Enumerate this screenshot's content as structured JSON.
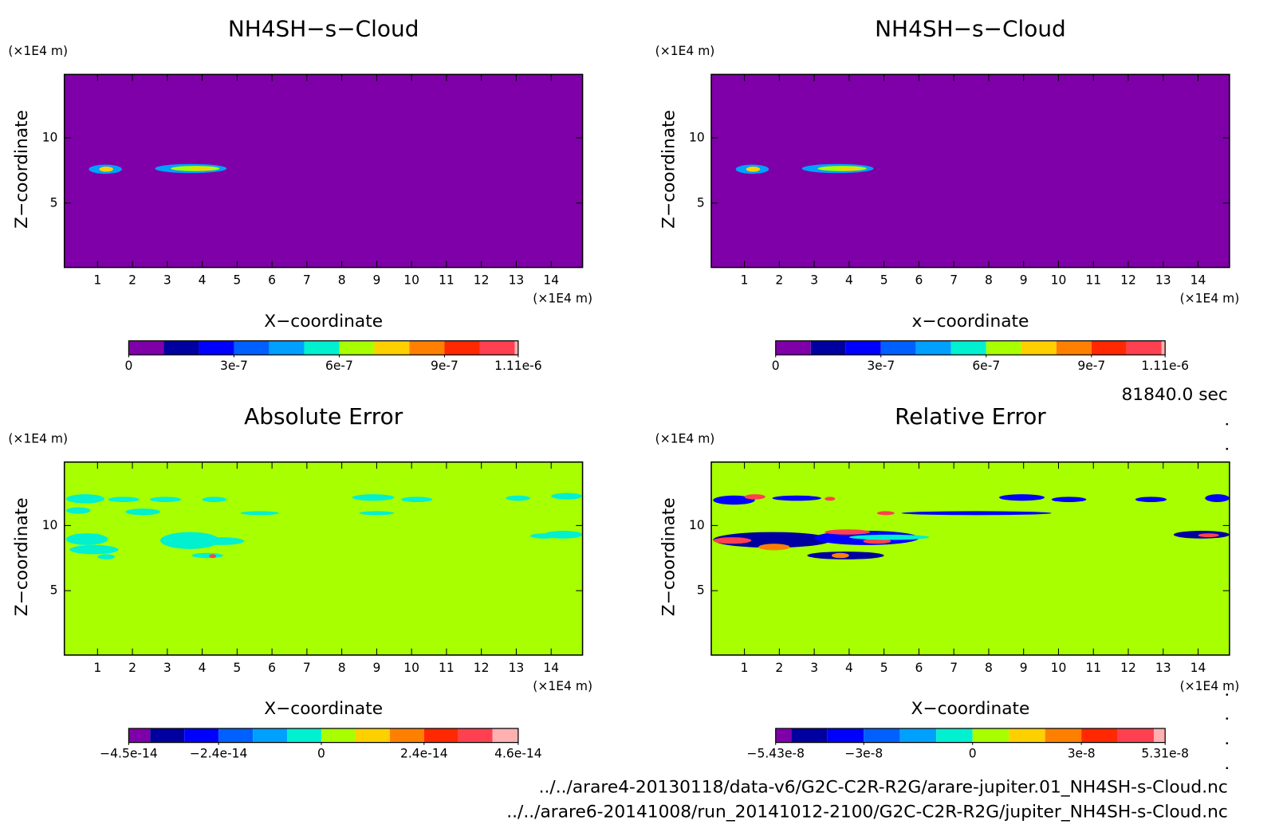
{
  "chart_data": [
    {
      "type": "contour",
      "title": "NH4SH−s−Cloud",
      "x_label": "X−coordinate",
      "y_label": "Z−coordinate",
      "x_unit": "(×1E4 m)",
      "y_unit": "(×1E4 m)",
      "xlim": [
        0.05,
        14.9
      ],
      "ylim": [
        0.06,
        14.87
      ],
      "xticks": [
        1,
        2,
        3,
        4,
        5,
        6,
        7,
        8,
        9,
        10,
        11,
        12,
        13,
        14
      ],
      "yticks": [
        5,
        10
      ],
      "background": 0,
      "patches": [
        {
          "x": [
            0.75,
            1.7
          ],
          "z": [
            7.25,
            7.95
          ],
          "value": 4e-07
        },
        {
          "x": [
            1.05,
            1.45
          ],
          "z": [
            7.4,
            7.8
          ],
          "value": 7e-07
        },
        {
          "x": [
            2.65,
            4.7
          ],
          "z": [
            7.3,
            8.0
          ],
          "value": 4e-07
        },
        {
          "x": [
            3.1,
            4.5
          ],
          "z": [
            7.45,
            7.85
          ],
          "value": 6.5e-07
        },
        {
          "x": [
            3.7,
            4.3
          ],
          "z": [
            7.5,
            7.75
          ],
          "value": 7e-07
        }
      ],
      "colorbar": {
        "levels": [
          0,
          1e-07,
          2e-07,
          3e-07,
          4e-07,
          5e-07,
          6e-07,
          7e-07,
          8e-07,
          9e-07,
          1e-06,
          1.1e-06,
          1.11e-06
        ],
        "colors": [
          "#7f00a8",
          "#0000a0",
          "#0000ff",
          "#0060ff",
          "#00a0ff",
          "#00f0d0",
          "#a8ff00",
          "#ffd000",
          "#ff8000",
          "#ff2800",
          "#ff4050",
          "#ffb0b0"
        ],
        "ticks": [
          0,
          {
            "value": 3e-07,
            "label": "3e-7"
          },
          {
            "value": 6e-07,
            "label": "6e-7"
          },
          {
            "value": 9e-07,
            "label": "9e-7"
          },
          {
            "value": 1.11e-06,
            "label": "1.11e-6"
          }
        ]
      }
    },
    {
      "type": "contour",
      "title": "NH4SH−s−Cloud",
      "x_label": "x−coordinate",
      "y_label": "Z−coordinate",
      "x_unit": "(×1E4 m)",
      "y_unit": "(×1E4 m)",
      "xlim": [
        0.05,
        14.9
      ],
      "ylim": [
        0.06,
        14.87
      ],
      "xticks": [
        1,
        2,
        3,
        4,
        5,
        6,
        7,
        8,
        9,
        10,
        11,
        12,
        13,
        14
      ],
      "yticks": [
        5,
        10
      ],
      "background": 0,
      "patches": [
        {
          "x": [
            0.75,
            1.7
          ],
          "z": [
            7.25,
            7.95
          ],
          "value": 4e-07
        },
        {
          "x": [
            1.05,
            1.45
          ],
          "z": [
            7.4,
            7.8
          ],
          "value": 7e-07
        },
        {
          "x": [
            2.65,
            4.7
          ],
          "z": [
            7.3,
            8.0
          ],
          "value": 4e-07
        },
        {
          "x": [
            3.1,
            4.5
          ],
          "z": [
            7.45,
            7.85
          ],
          "value": 6.5e-07
        },
        {
          "x": [
            3.7,
            4.3
          ],
          "z": [
            7.5,
            7.75
          ],
          "value": 7e-07
        }
      ],
      "colorbar": {
        "levels": [
          0,
          1e-07,
          2e-07,
          3e-07,
          4e-07,
          5e-07,
          6e-07,
          7e-07,
          8e-07,
          9e-07,
          1e-06,
          1.1e-06,
          1.11e-06
        ],
        "colors": [
          "#7f00a8",
          "#0000a0",
          "#0000ff",
          "#0060ff",
          "#00a0ff",
          "#00f0d0",
          "#a8ff00",
          "#ffd000",
          "#ff8000",
          "#ff2800",
          "#ff4050",
          "#ffb0b0"
        ],
        "ticks": [
          0,
          {
            "value": 3e-07,
            "label": "3e-7"
          },
          {
            "value": 6e-07,
            "label": "6e-7"
          },
          {
            "value": 9e-07,
            "label": "9e-7"
          },
          {
            "value": 1.11e-06,
            "label": "1.11e-6"
          }
        ]
      }
    },
    {
      "type": "contour",
      "title": "Absolute Error",
      "x_label": "X−coordinate",
      "y_label": "Z−coordinate",
      "x_unit": "(×1E4 m)",
      "y_unit": "(×1E4 m)",
      "xlim": [
        0.05,
        14.9
      ],
      "ylim": [
        0.06,
        14.87
      ],
      "xticks": [
        1,
        2,
        3,
        4,
        5,
        6,
        7,
        8,
        9,
        10,
        11,
        12,
        13,
        14
      ],
      "yticks": [
        5,
        10
      ],
      "background": 0,
      "patches": [
        {
          "x": [
            0.1,
            1.2
          ],
          "z": [
            11.7,
            12.4
          ],
          "value": -4e-15
        },
        {
          "x": [
            1.3,
            2.2
          ],
          "z": [
            11.8,
            12.2
          ],
          "value": -4e-15
        },
        {
          "x": [
            2.5,
            3.4
          ],
          "z": [
            11.8,
            12.2
          ],
          "value": -4e-15
        },
        {
          "x": [
            4.0,
            4.7
          ],
          "z": [
            11.8,
            12.2
          ],
          "value": -4e-15
        },
        {
          "x": [
            8.3,
            9.5
          ],
          "z": [
            11.9,
            12.4
          ],
          "value": -4e-15
        },
        {
          "x": [
            9.7,
            10.6
          ],
          "z": [
            11.8,
            12.2
          ],
          "value": -4e-15
        },
        {
          "x": [
            12.7,
            13.4
          ],
          "z": [
            11.9,
            12.3
          ],
          "value": -4e-15
        },
        {
          "x": [
            0.1,
            0.8
          ],
          "z": [
            10.9,
            11.4
          ],
          "value": -4e-15
        },
        {
          "x": [
            1.8,
            2.8
          ],
          "z": [
            10.8,
            11.3
          ],
          "value": -4e-15
        },
        {
          "x": [
            5.1,
            6.2
          ],
          "z": [
            10.8,
            11.1
          ],
          "value": -4e-15
        },
        {
          "x": [
            8.5,
            9.5
          ],
          "z": [
            10.8,
            11.1
          ],
          "value": -4e-15
        },
        {
          "x": [
            0.1,
            1.3
          ],
          "z": [
            8.5,
            9.4
          ],
          "value": -4e-15
        },
        {
          "x": [
            0.2,
            1.6
          ],
          "z": [
            7.8,
            8.5
          ],
          "value": -4e-15
        },
        {
          "x": [
            2.8,
            4.5
          ],
          "z": [
            8.2,
            9.5
          ],
          "value": -4e-15
        },
        {
          "x": [
            3.9,
            5.2
          ],
          "z": [
            8.5,
            9.1
          ],
          "value": -4e-15
        },
        {
          "x": [
            1.0,
            1.5
          ],
          "z": [
            7.4,
            7.8
          ],
          "value": -4e-15
        },
        {
          "x": [
            3.7,
            4.6
          ],
          "z": [
            7.5,
            7.9
          ],
          "value": -4e-15
        },
        {
          "x": [
            4.2,
            4.4
          ],
          "z": [
            7.5,
            7.8
          ],
          "value": 3.5e-14
        },
        {
          "x": [
            13.4,
            14.2
          ],
          "z": [
            9.0,
            9.4
          ],
          "value": -4e-15
        },
        {
          "x": [
            13.8,
            14.9
          ],
          "z": [
            9.0,
            9.6
          ],
          "value": -4e-15
        },
        {
          "x": [
            14.0,
            14.9
          ],
          "z": [
            12.0,
            12.5
          ],
          "value": -4e-15
        }
      ],
      "colorbar": {
        "levels": [
          -4.5e-14,
          -4e-14,
          -3.2e-14,
          -2.4e-14,
          -1.6e-14,
          -8e-15,
          0,
          8e-15,
          1.6e-14,
          2.4e-14,
          3.2e-14,
          4e-14,
          4.6e-14
        ],
        "colors": [
          "#7f00a8",
          "#0000a0",
          "#0000ff",
          "#0060ff",
          "#00a0ff",
          "#00f0d0",
          "#a8ff00",
          "#ffd000",
          "#ff8000",
          "#ff2800",
          "#ff4050",
          "#ffb0b0"
        ],
        "ticks": [
          {
            "value": -4.5e-14,
            "label": "−4.5e-14"
          },
          {
            "value": -2.4e-14,
            "label": "−2.4e-14"
          },
          0,
          {
            "value": 2.4e-14,
            "label": "2.4e-14"
          },
          {
            "value": 4.6e-14,
            "label": "4.6e-14"
          }
        ]
      }
    },
    {
      "type": "contour",
      "title": "Relative Error",
      "x_label": "X−coordinate",
      "y_label": "Z−coordinate",
      "x_unit": "(×1E4 m)",
      "y_unit": "(×1E4 m)",
      "xlim": [
        0.05,
        14.9
      ],
      "ylim": [
        0.06,
        14.87
      ],
      "xticks": [
        1,
        2,
        3,
        4,
        5,
        6,
        7,
        8,
        9,
        10,
        11,
        12,
        13,
        14
      ],
      "yticks": [
        5,
        10
      ],
      "background": 0,
      "patches": [
        {
          "x": [
            0.1,
            1.3
          ],
          "z": [
            11.6,
            12.3
          ],
          "value": -3.5e-08
        },
        {
          "x": [
            1.0,
            1.6
          ],
          "z": [
            12.0,
            12.4
          ],
          "value": 4.5e-08
        },
        {
          "x": [
            1.8,
            3.2
          ],
          "z": [
            11.9,
            12.3
          ],
          "value": -3.5e-08
        },
        {
          "x": [
            3.3,
            3.6
          ],
          "z": [
            11.9,
            12.2
          ],
          "value": 4.5e-08
        },
        {
          "x": [
            8.3,
            9.6
          ],
          "z": [
            11.9,
            12.4
          ],
          "value": -3.5e-08
        },
        {
          "x": [
            9.8,
            10.8
          ],
          "z": [
            11.8,
            12.2
          ],
          "value": -3.5e-08
        },
        {
          "x": [
            12.2,
            13.1
          ],
          "z": [
            11.8,
            12.2
          ],
          "value": -3.5e-08
        },
        {
          "x": [
            5.5,
            9.8
          ],
          "z": [
            10.8,
            11.1
          ],
          "value": -3.5e-08
        },
        {
          "x": [
            4.8,
            5.3
          ],
          "z": [
            10.8,
            11.1
          ],
          "value": 4.5e-08
        },
        {
          "x": [
            0.1,
            3.5
          ],
          "z": [
            8.3,
            9.5
          ],
          "value": -4.5e-08
        },
        {
          "x": [
            0.1,
            1.2
          ],
          "z": [
            8.6,
            9.1
          ],
          "value": 4.5e-08
        },
        {
          "x": [
            1.4,
            2.3
          ],
          "z": [
            8.1,
            8.6
          ],
          "value": 2.5e-08
        },
        {
          "x": [
            3.0,
            6.0
          ],
          "z": [
            8.5,
            9.6
          ],
          "value": -3.5e-08
        },
        {
          "x": [
            3.3,
            4.6
          ],
          "z": [
            9.3,
            9.7
          ],
          "value": 4.5e-08
        },
        {
          "x": [
            4.4,
            5.2
          ],
          "z": [
            8.6,
            9.0
          ],
          "value": 4.5e-08
        },
        {
          "x": [
            2.8,
            5.0
          ],
          "z": [
            7.4,
            8.0
          ],
          "value": -4.5e-08
        },
        {
          "x": [
            3.5,
            4.0
          ],
          "z": [
            7.5,
            7.9
          ],
          "value": 2.5e-08
        },
        {
          "x": [
            4.0,
            6.3
          ],
          "z": [
            8.9,
            9.3
          ],
          "value": -5e-09
        },
        {
          "x": [
            13.3,
            14.9
          ],
          "z": [
            9.0,
            9.6
          ],
          "value": -4.5e-08
        },
        {
          "x": [
            14.0,
            14.6
          ],
          "z": [
            9.1,
            9.4
          ],
          "value": 4.5e-08
        },
        {
          "x": [
            14.2,
            14.9
          ],
          "z": [
            11.8,
            12.4
          ],
          "value": -3.5e-08
        }
      ],
      "colorbar": {
        "levels": [
          -5.43e-08,
          -5e-08,
          -4e-08,
          -3e-08,
          -2e-08,
          -1e-08,
          0,
          1e-08,
          2e-08,
          3e-08,
          4e-08,
          5e-08,
          5.31e-08
        ],
        "colors": [
          "#7f00a8",
          "#0000a0",
          "#0000ff",
          "#0060ff",
          "#00a0ff",
          "#00f0d0",
          "#a8ff00",
          "#ffd000",
          "#ff8000",
          "#ff2800",
          "#ff4050",
          "#ffb0b0"
        ],
        "ticks": [
          {
            "value": -5.43e-08,
            "label": "−5.43e-8"
          },
          {
            "value": -3e-08,
            "label": "−3e-8"
          },
          0,
          {
            "value": 3e-08,
            "label": "3e-8"
          },
          {
            "value": 5.31e-08,
            "label": "5.31e-8"
          }
        ]
      }
    }
  ],
  "time_label": "81840.0 sec",
  "files": [
    "../../arare4-20130118/data-v6/G2C-C2R-R2G/arare-jupiter.01_NH4SH-s-Cloud.nc",
    "../../arare6-20141008/run_20141012-2100/G2C-C2R-R2G/jupiter_NH4SH-s-Cloud.nc"
  ]
}
